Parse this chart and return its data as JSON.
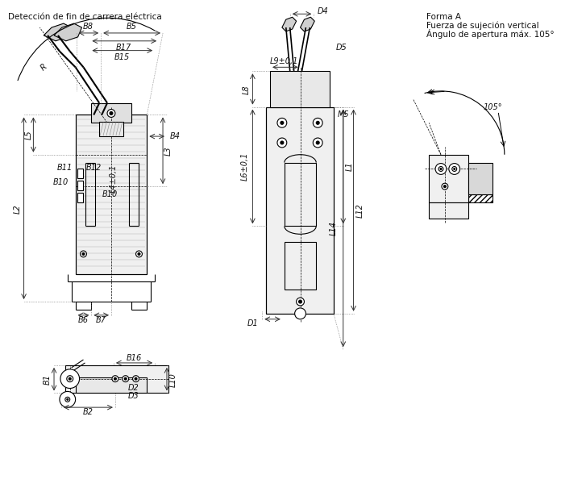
{
  "title": "Detección de fin de carrera eléctrica",
  "title2_line1": "Forma A",
  "title2_line2": "Fuerza de sujeción vertical",
  "title2_line3": "Ángulo de apertura máx. 105°",
  "bg_color": "#ffffff",
  "line_color": "#000000",
  "hatch_color": "#000000",
  "dim_color": "#000000",
  "font_size": 7,
  "title_font_size": 7.5
}
